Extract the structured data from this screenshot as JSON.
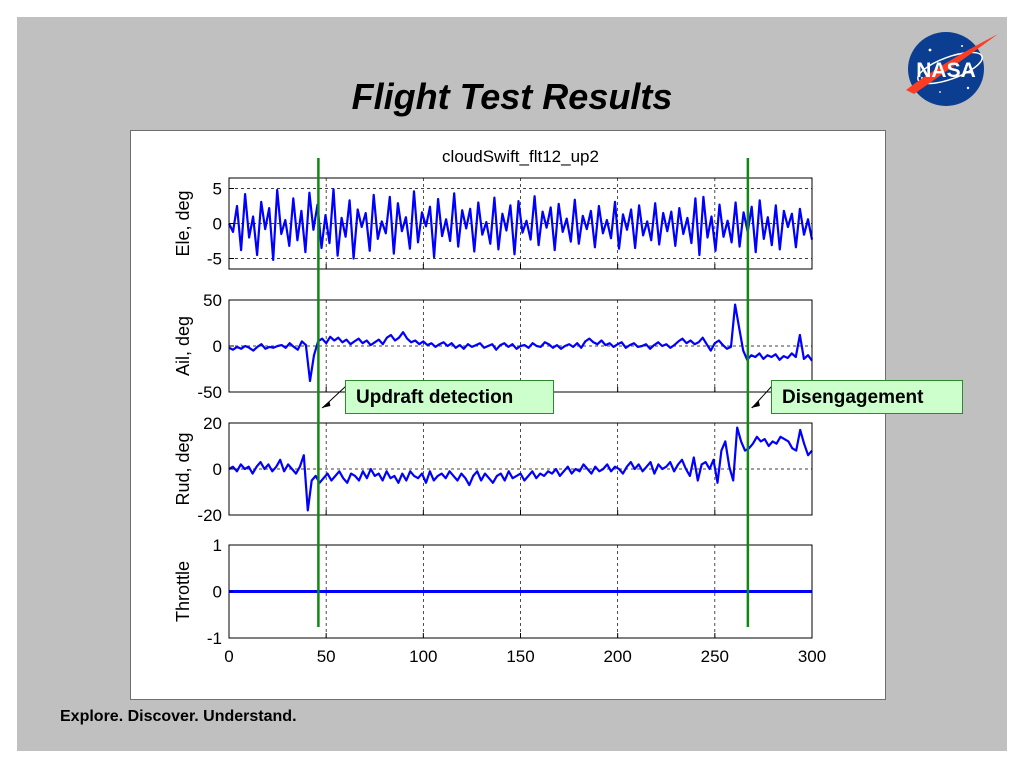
{
  "slide": {
    "title": "Flight Test Results",
    "footer": "Explore. Discover. Understand.",
    "logo_text": "NASA"
  },
  "callouts": {
    "updraft": "Updraft detection",
    "disengage": "Disengagement"
  },
  "chart_data": {
    "type": "line",
    "title": "cloudSwift_flt12_up2",
    "x_range": [
      0,
      300
    ],
    "x_ticks": [
      0,
      50,
      100,
      150,
      200,
      250,
      300
    ],
    "grid": true,
    "series_color": "#0000ff",
    "marker_color": "#118811",
    "event_lines_x": [
      46,
      267
    ],
    "subplots": [
      {
        "ylabel": "Ele, deg",
        "ylim": [
          -6.5,
          6.5
        ],
        "yticks": [
          5,
          0,
          -5
        ],
        "samples": [
          0,
          -1.2,
          2.5,
          -3.8,
          4.2,
          -2,
          1,
          -4.5,
          3.1,
          -0.8,
          2.2,
          -5.2,
          4.8,
          -1.5,
          0.5,
          -3.2,
          3.6,
          -2.4,
          1.8,
          -4.1,
          4.4,
          -0.9,
          2.7,
          -3.5,
          1.2,
          -2.8,
          4.9,
          -4.6,
          0.8,
          -1.9,
          3.3,
          -5,
          2,
          -0.5,
          1.5,
          -3.9,
          4.1,
          -2.2,
          0.3,
          -1.4,
          3.8,
          -4.3,
          2.9,
          -1.1,
          0.9,
          -3.6,
          4.6,
          -2.7,
          1.6,
          -0.4,
          2.4,
          -4.8,
          3.5,
          -1.8,
          0.6,
          -2.5,
          4.3,
          -3.3,
          1.9,
          -0.7,
          2.1,
          -4,
          3,
          -1.6,
          0.2,
          -2.9,
          3.7,
          -3.7,
          1.4,
          -1,
          2.6,
          -4.4,
          3.2,
          -1.3,
          0.4,
          -2.3,
          3.9,
          -3.1,
          1.7,
          -0.6,
          2.3,
          -3.8,
          2.8,
          -1.2,
          0.7,
          -2.6,
          3.4,
          -2.9,
          1.1,
          -0.8,
          1.8,
          -3.4,
          2.5,
          -1.4,
          0.5,
          -2.1,
          3.1,
          -3.6,
          1.3,
          -0.9,
          2,
          -3.5,
          2.6,
          -1.7,
          0.3,
          -2.4,
          2.9,
          -3,
          1.5,
          -1.1,
          1.7,
          -3.2,
          2.2,
          -1.5,
          0.8,
          -2.8,
          3.6,
          -4.5,
          3.8,
          -2,
          1,
          -3.9,
          2.7,
          -1.9,
          0.4,
          -2.7,
          3,
          -3.3,
          1.6,
          -1.2,
          2.4,
          -4.1,
          3.3,
          -2.2,
          0.9,
          -3.1,
          2.6,
          -3.7,
          1.8,
          -0.5,
          1.4,
          -3.4,
          2.1,
          -1.6,
          0.6,
          -2.3
        ]
      },
      {
        "ylabel": "Ail, deg",
        "ylim": [
          -50,
          50
        ],
        "yticks": [
          50,
          0,
          -50
        ],
        "samples": [
          -2,
          -4,
          -1,
          -3,
          0,
          -2,
          -5,
          -1,
          2,
          -3,
          -1,
          -2,
          0,
          1,
          -2,
          3,
          -1,
          -4,
          5,
          1,
          -38,
          -10,
          5,
          8,
          3,
          10,
          6,
          9,
          4,
          7,
          2,
          5,
          8,
          3,
          6,
          1,
          4,
          7,
          2,
          9,
          12,
          6,
          9,
          15,
          8,
          4,
          6,
          2,
          5,
          1,
          3,
          -1,
          2,
          4,
          0,
          3,
          -2,
          1,
          -3,
          2,
          -1,
          1,
          3,
          -2,
          0,
          2,
          -4,
          1,
          3,
          -1,
          2,
          -3,
          0,
          1,
          -2,
          3,
          0,
          -1,
          4,
          2,
          -2,
          1,
          -3,
          0,
          2,
          -1,
          3,
          -2,
          5,
          8,
          4,
          2,
          6,
          1,
          3,
          -1,
          2,
          4,
          -2,
          1,
          3,
          -1,
          0,
          2,
          -3,
          1,
          4,
          0,
          2,
          -2,
          1,
          5,
          8,
          3,
          6,
          2,
          4,
          9,
          2,
          -5,
          3,
          6,
          1,
          -3,
          -1,
          45,
          20,
          -5,
          -15,
          -10,
          -12,
          -8,
          -14,
          -10,
          -12,
          -9,
          -15,
          -11,
          -13,
          -8,
          -12,
          12,
          -14,
          -10,
          -16
        ]
      },
      {
        "ylabel": "Rud, deg",
        "ylim": [
          -20,
          20
        ],
        "yticks": [
          20,
          0,
          -20
        ],
        "samples": [
          0,
          1,
          -1,
          2,
          0,
          1,
          -2,
          1,
          3,
          0,
          2,
          -1,
          1,
          4,
          -1,
          2,
          0,
          -2,
          1,
          6,
          -18,
          -5,
          -3,
          -6,
          -4,
          -2,
          -5,
          -3,
          -1,
          -4,
          -6,
          -2,
          -3,
          -5,
          -1,
          -4,
          0,
          -3,
          -2,
          -5,
          -1,
          -4,
          -3,
          -6,
          -2,
          -5,
          -1,
          -3,
          -4,
          -2,
          -6,
          -1,
          -5,
          -3,
          -2,
          -4,
          -1,
          -3,
          -5,
          -2,
          -4,
          -7,
          -3,
          -1,
          -5,
          -2,
          -4,
          -6,
          -3,
          -2,
          -5,
          -1,
          -4,
          -3,
          -2,
          -5,
          -3,
          -1,
          -4,
          -2,
          -3,
          -1,
          -2,
          0,
          -3,
          -1,
          1,
          -2,
          0,
          -1,
          2,
          0,
          -2,
          1,
          -1,
          0,
          2,
          -1,
          1,
          0,
          -2,
          1,
          3,
          0,
          2,
          -1,
          1,
          3,
          -2,
          2,
          0,
          1,
          3,
          -1,
          2,
          4,
          0,
          -3,
          5,
          -5,
          2,
          3,
          0,
          4,
          -6,
          8,
          12,
          1,
          -5,
          18,
          12,
          8,
          9,
          11,
          14,
          12,
          13,
          10,
          12,
          11,
          14,
          13,
          12,
          9,
          8,
          17,
          11,
          6,
          8
        ]
      },
      {
        "ylabel": "Throttle",
        "ylim": [
          -1,
          1
        ],
        "yticks": [
          1,
          0,
          -1
        ],
        "samples": [
          0,
          0
        ]
      }
    ]
  }
}
